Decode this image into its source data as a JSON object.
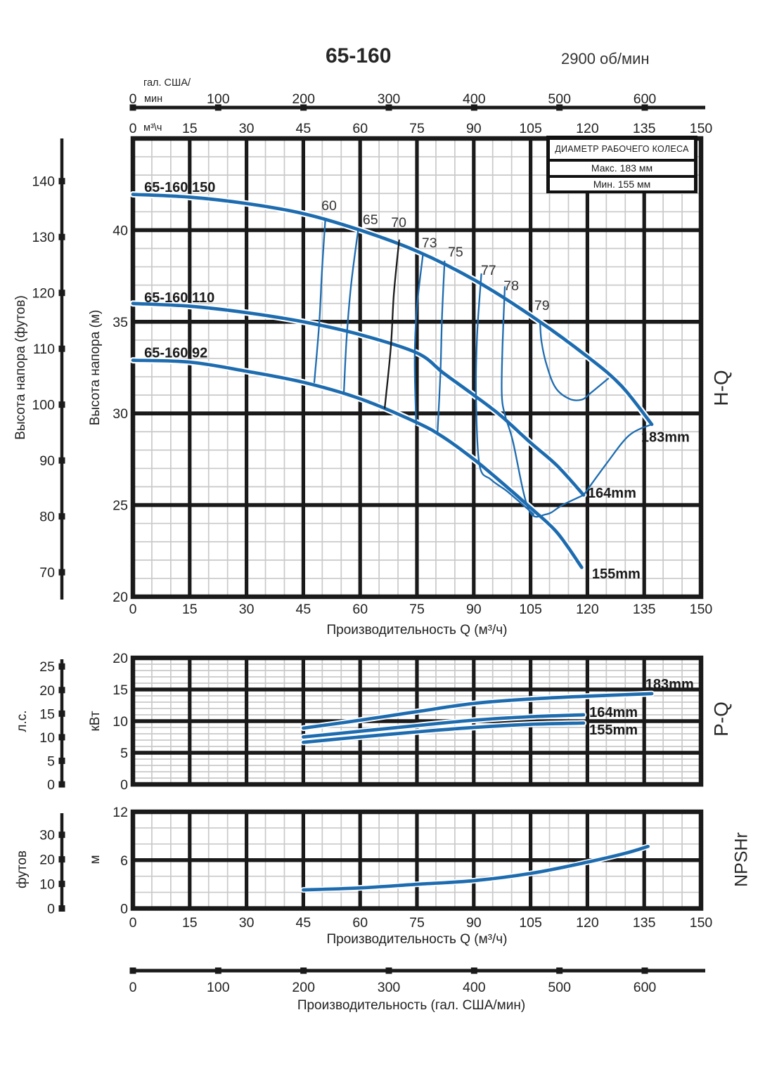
{
  "title": "65-160",
  "rpm": "2900 об/мин",
  "axes": {
    "gal_unit_line1": "гал. США/",
    "gal_unit_line2": "мин",
    "m3h_unit": "м³\\ч",
    "gal_ticks": [
      0,
      100,
      200,
      300,
      400,
      500,
      600
    ],
    "q_ticks": [
      0,
      15,
      30,
      45,
      60,
      75,
      90,
      105,
      120,
      135,
      150
    ]
  },
  "impeller_box": {
    "title": "ДИАМЕТР РАБОЧЕГО КОЛЕСА",
    "max": "Макс. 183 мм",
    "min": "Мин. 155 мм"
  },
  "side_labels": {
    "hq": "H-Q",
    "pq": "P-Q",
    "npshr": "NPSHr"
  },
  "left_labels": {
    "feet": "Высота напора (футов)",
    "meters": "Высота напора (м)",
    "hp": "л.с.",
    "kw": "кВт",
    "feet_npsh": "футов",
    "m_npsh": "м"
  },
  "xlabel_q": "Производительность Q (м³/ч)",
  "xlabel_gal": "Производительность (гал. США/мин)",
  "colors": {
    "curve_blue": "#1d6cb0",
    "grid_major": "#1a1a1a",
    "grid_minor": "#c9c9c9",
    "eff_black": "#1a1a1a"
  },
  "chart_data": [
    {
      "type": "line",
      "title": "H-Q",
      "xlabel": "Производительность Q (м³/ч)",
      "ylabel_m": "Высота напора (м)",
      "ylabel_ft": "Высота напора (футов)",
      "x_range": [
        0,
        150
      ],
      "x_major": 15,
      "x_minor": 5,
      "y_range": [
        20,
        45
      ],
      "y_major": 5,
      "y_minor": 1,
      "y_ticks_labeled": [
        20,
        25,
        30,
        35,
        40
      ],
      "ft_ticks": [
        70,
        80,
        90,
        100,
        110,
        120,
        130,
        140
      ],
      "series": [
        {
          "name": "65-160/92",
          "impeller": "155mm",
          "label_pos": [
            3.0,
            33.05
          ],
          "mm_label_pos": [
            121.2,
            21.0
          ],
          "points": [
            [
              0,
              32.9
            ],
            [
              15,
              32.8
            ],
            [
              30,
              32.3
            ],
            [
              45,
              31.7
            ],
            [
              60,
              30.8
            ],
            [
              75,
              29.5
            ],
            [
              82,
              28.7
            ],
            [
              90,
              27.5
            ],
            [
              97,
              26.3
            ],
            [
              105,
              24.85
            ],
            [
              112,
              23.5
            ],
            [
              118.5,
              21.6
            ]
          ]
        },
        {
          "name": "65-160/110",
          "impeller": "164mm",
          "label_pos": [
            3.0,
            36.07
          ],
          "mm_label_pos": [
            120.1,
            25.4
          ],
          "points": [
            [
              0,
              36.0
            ],
            [
              15,
              35.85
            ],
            [
              30,
              35.5
            ],
            [
              45,
              35.0
            ],
            [
              60,
              34.3
            ],
            [
              75,
              33.3
            ],
            [
              82,
              32.2
            ],
            [
              90,
              31.0
            ],
            [
              97,
              29.9
            ],
            [
              105,
              28.4
            ],
            [
              112,
              27.15
            ],
            [
              119,
              25.55
            ]
          ]
        },
        {
          "name": "65-160/150",
          "impeller": "183mm",
          "label_pos": [
            3.0,
            42.08
          ],
          "mm_label_pos": [
            134.2,
            28.45
          ],
          "points": [
            [
              0,
              41.95
            ],
            [
              15,
              41.8
            ],
            [
              30,
              41.45
            ],
            [
              45,
              40.9
            ],
            [
              60,
              40.0
            ],
            [
              75,
              38.85
            ],
            [
              90,
              37.3
            ],
            [
              105,
              35.35
            ],
            [
              120,
              33.1
            ],
            [
              129,
              31.5
            ],
            [
              137,
              29.4
            ]
          ]
        }
      ],
      "efficiency_lines": [
        {
          "label": "60",
          "label_pos": [
            51.8,
            41.36
          ],
          "color": "blue",
          "points": [
            [
              50.8,
              40.55
            ],
            [
              49.9,
              37.7
            ],
            [
              49.2,
              34.9
            ],
            [
              47.9,
              31.7
            ]
          ]
        },
        {
          "label": "65",
          "label_pos": [
            62.7,
            40.6
          ],
          "color": "blue",
          "points": [
            [
              59.5,
              40.05
            ],
            [
              57.6,
              37.0
            ],
            [
              56.4,
              34.0
            ],
            [
              55.7,
              31.1
            ]
          ]
        },
        {
          "label": "70",
          "label_pos": [
            70.2,
            40.44
          ],
          "color": "black",
          "points": [
            [
              70.3,
              39.45
            ],
            [
              68.9,
              36.5
            ],
            [
              68.1,
              33.6
            ],
            [
              66.5,
              30.3
            ]
          ]
        },
        {
          "label": "73",
          "label_pos": [
            78.3,
            39.33
          ],
          "color": "blue",
          "points": [
            [
              76.6,
              38.7
            ],
            [
              75.0,
              35.8
            ],
            [
              74.4,
              32.9
            ],
            [
              74.8,
              29.4
            ]
          ]
        },
        {
          "label": "75",
          "label_pos": [
            85.2,
            38.83
          ],
          "color": "blue",
          "points": [
            [
              82.3,
              38.3
            ],
            [
              81.6,
              35.2
            ],
            [
              81.2,
              32.2
            ],
            [
              80.4,
              28.85
            ]
          ]
        },
        {
          "label": "77",
          "label_pos": [
            93.9,
            37.83
          ],
          "color": "blue",
          "points": [
            [
              92.0,
              37.6
            ],
            [
              90.9,
              34.3
            ],
            [
              90.6,
              31.0
            ],
            [
              91.5,
              27.2
            ],
            [
              94.5,
              26.4
            ],
            [
              98.5,
              25.8
            ],
            [
              102.5,
              25.1
            ],
            [
              105.8,
              24.5
            ]
          ]
        },
        {
          "label": "78",
          "label_pos": [
            99.9,
            36.99
          ],
          "color": "blue",
          "points": [
            [
              98.2,
              36.9
            ],
            [
              97.6,
              33.7
            ],
            [
              97.4,
              31.0
            ],
            [
              98.4,
              29.8
            ],
            [
              100.3,
              28.5
            ],
            [
              104.5,
              24.75
            ],
            [
              109.2,
              24.5
            ],
            [
              113.4,
              25.0
            ],
            [
              119,
              25.55
            ]
          ]
        },
        {
          "label": "79",
          "label_pos": [
            108.0,
            35.91
          ],
          "color": "blue",
          "points": [
            [
              107.5,
              35.0
            ],
            [
              107.9,
              33.9
            ],
            [
              109.3,
              32.6
            ],
            [
              111.6,
              31.4
            ],
            [
              115.2,
              30.8
            ],
            [
              118.5,
              30.75
            ],
            [
              120.8,
              31.1
            ],
            [
              125.5,
              31.9
            ]
          ]
        }
      ],
      "boundary_line": [
        [
          119,
          25.55
        ],
        [
          125,
          27.25
        ],
        [
          131,
          28.8
        ],
        [
          136.9,
          29.4
        ]
      ]
    },
    {
      "type": "line",
      "title": "P-Q",
      "x_range": [
        0,
        150
      ],
      "x_major": 15,
      "x_minor": 5,
      "y_range": [
        0,
        20
      ],
      "y_major": 5,
      "y_minor": 1,
      "y_ticks_labeled": [
        0,
        5,
        10,
        15,
        20
      ],
      "hp_ticks": [
        0,
        5,
        10,
        15,
        20,
        25
      ],
      "series": [
        {
          "name": "155mm",
          "label_pos": [
            120.5,
            7.89
          ],
          "points": [
            [
              45,
              6.65
            ],
            [
              60,
              7.5
            ],
            [
              75,
              8.3
            ],
            [
              90,
              9.0
            ],
            [
              105,
              9.5
            ],
            [
              119,
              9.7
            ]
          ]
        },
        {
          "name": "164mm",
          "label_pos": [
            120.5,
            10.67
          ],
          "points": [
            [
              45,
              7.5
            ],
            [
              60,
              8.4
            ],
            [
              75,
              9.3
            ],
            [
              90,
              10.15
            ],
            [
              105,
              10.7
            ],
            [
              119,
              11.0
            ]
          ]
        },
        {
          "name": "183mm",
          "label_pos": [
            135.3,
            15.1
          ],
          "points": [
            [
              45,
              8.9
            ],
            [
              60,
              10.15
            ],
            [
              75,
              11.5
            ],
            [
              90,
              12.8
            ],
            [
              105,
              13.5
            ],
            [
              120,
              13.95
            ],
            [
              137,
              14.35
            ]
          ]
        }
      ]
    },
    {
      "type": "line",
      "title": "NPSHr",
      "xlabel": "Производительность Q (м³/ч)",
      "x_range": [
        0,
        150
      ],
      "x_major": 15,
      "x_minor": 5,
      "y_range": [
        0,
        12
      ],
      "y_major": 6,
      "y_minor": 2,
      "y_ticks_labeled": [
        0,
        6,
        12
      ],
      "ft_ticks": [
        0,
        10,
        20,
        30
      ],
      "series": [
        {
          "name": "NPSHr",
          "points": [
            [
              45,
              2.3
            ],
            [
              60,
              2.55
            ],
            [
              75,
              3.0
            ],
            [
              90,
              3.45
            ],
            [
              105,
              4.35
            ],
            [
              120,
              5.75
            ],
            [
              130,
              6.85
            ],
            [
              136,
              7.7
            ]
          ]
        }
      ]
    }
  ]
}
